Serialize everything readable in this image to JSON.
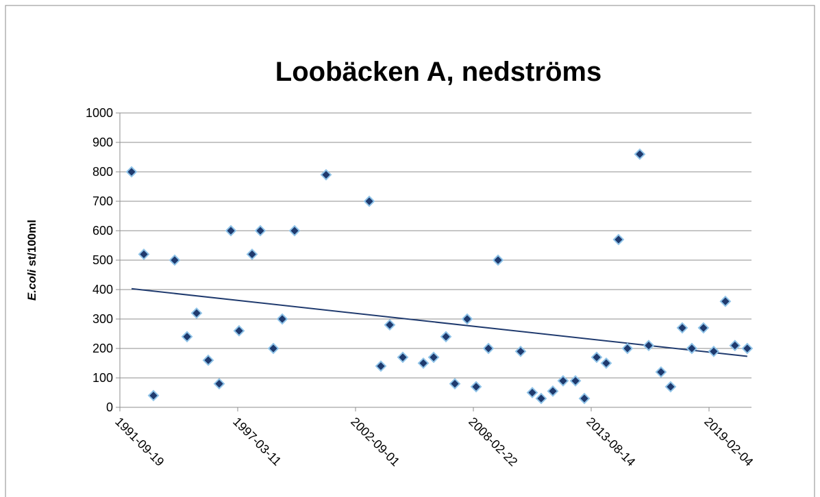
{
  "chart_data": {
    "type": "scatter",
    "title": "Loobäcken A, nedströms",
    "ylabel": [
      "E.coli",
      "st/100ml"
    ],
    "series": [
      {
        "name": "E.coli",
        "color": "#1f3a6e",
        "edge": "#8fc3e8",
        "x": [
          "1992-04-04",
          "1992-10-30",
          "1993-04-11",
          "1994-04-06",
          "1994-11-02",
          "1995-04-13",
          "1995-10-28",
          "1996-05-01",
          "1996-11-15",
          "1997-04-03",
          "1997-11-10",
          "1998-03-30",
          "1998-11-06",
          "1999-04-06",
          "1999-11-01",
          "2001-04-19",
          "2003-04-22",
          "2003-11-05",
          "2004-04-04",
          "2004-11-11",
          "2005-10-26",
          "2006-04-19",
          "2006-11-14",
          "2007-04-14",
          "2007-11-09",
          "2008-04-09",
          "2008-11-04",
          "2009-04-16",
          "2010-05-04",
          "2010-11-18",
          "2011-04-18",
          "2011-11-02",
          "2012-04-24",
          "2012-11-20",
          "2013-04-20",
          "2013-11-15",
          "2014-04-26",
          "2014-11-21",
          "2015-04-21",
          "2015-11-17",
          "2016-04-16",
          "2016-11-11",
          "2017-04-23",
          "2017-11-07",
          "2018-04-18",
          "2018-11-02",
          "2019-04-25",
          "2019-11-09",
          "2020-04-19",
          "2020-11-14"
        ],
        "values": [
          800,
          520,
          40,
          500,
          240,
          320,
          160,
          80,
          600,
          260,
          520,
          600,
          200,
          300,
          600,
          790,
          700,
          140,
          280,
          170,
          150,
          170,
          240,
          80,
          300,
          70,
          200,
          500,
          190,
          50,
          30,
          55,
          90,
          90,
          30,
          170,
          150,
          570,
          200,
          860,
          210,
          120,
          70,
          270,
          200,
          270,
          190,
          360,
          210,
          200
        ]
      }
    ],
    "trendline": true,
    "trend_color": "#1f3a6e",
    "xlim": [
      "1991-09-19",
      "2021-01-25"
    ],
    "xticks": [
      "1991-09-19",
      "1997-03-11",
      "2002-09-01",
      "2008-02-22",
      "2013-08-14",
      "2019-02-04"
    ],
    "ylim": [
      0,
      1000
    ],
    "yticks": [
      0,
      100,
      200,
      300,
      400,
      500,
      600,
      700,
      800,
      900,
      1000
    ],
    "grid": true
  }
}
